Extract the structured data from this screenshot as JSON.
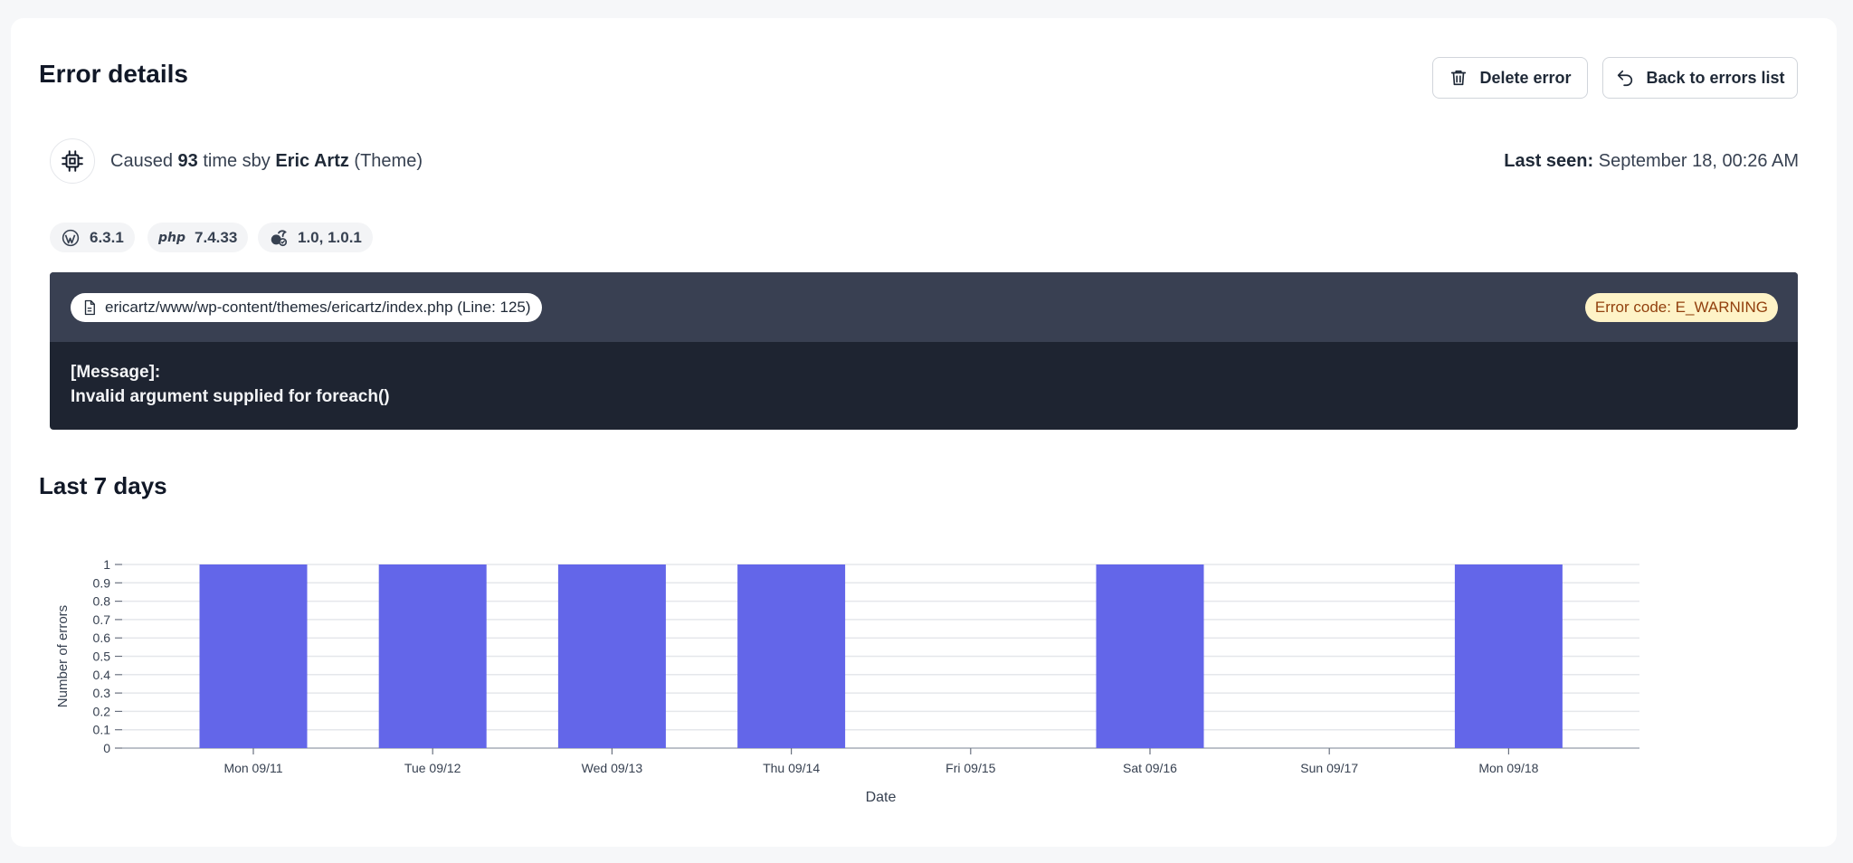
{
  "header": {
    "title": "Error details",
    "delete_label": "Delete error",
    "back_label": "Back to errors list"
  },
  "summary": {
    "caused_prefix": "Caused",
    "count": "93",
    "caused_mid": "time sby",
    "author": "Eric Artz",
    "source_type": "(Theme)",
    "last_seen_label": "Last seen:",
    "last_seen_value": "September 18, 00:26 AM"
  },
  "versions": {
    "wordpress": "6.3.1",
    "php_logo": "php",
    "php": "7.4.33",
    "plugin": "1.0, 1.0.1"
  },
  "error": {
    "file": "ericartz/www/wp-content/themes/ericartz/index.php (Line: 125)",
    "code": "Error code: E_WARNING",
    "message_label": "[Message]:",
    "message": "Invalid argument supplied for foreach()"
  },
  "chart_section": {
    "title": "Last 7 days"
  },
  "colors": {
    "bar": "#6366e9",
    "grid": "#e5e7eb",
    "error_box": "#1e2431",
    "error_header": "#394052"
  },
  "chart_data": {
    "type": "bar",
    "categories": [
      "Mon 09/11",
      "Tue 09/12",
      "Wed 09/13",
      "Thu 09/14",
      "Fri 09/15",
      "Sat 09/16",
      "Sun 09/17",
      "Mon 09/18"
    ],
    "values": [
      1,
      1,
      1,
      1,
      0,
      1,
      0,
      1
    ],
    "xlabel": "Date",
    "ylabel": "Number of errors",
    "ylim": [
      0,
      1
    ],
    "yticks": [
      "0",
      "0.1",
      "0.2",
      "0.3",
      "0.4",
      "0.5",
      "0.6",
      "0.7",
      "0.8",
      "0.9",
      "1"
    ],
    "grid": true
  }
}
